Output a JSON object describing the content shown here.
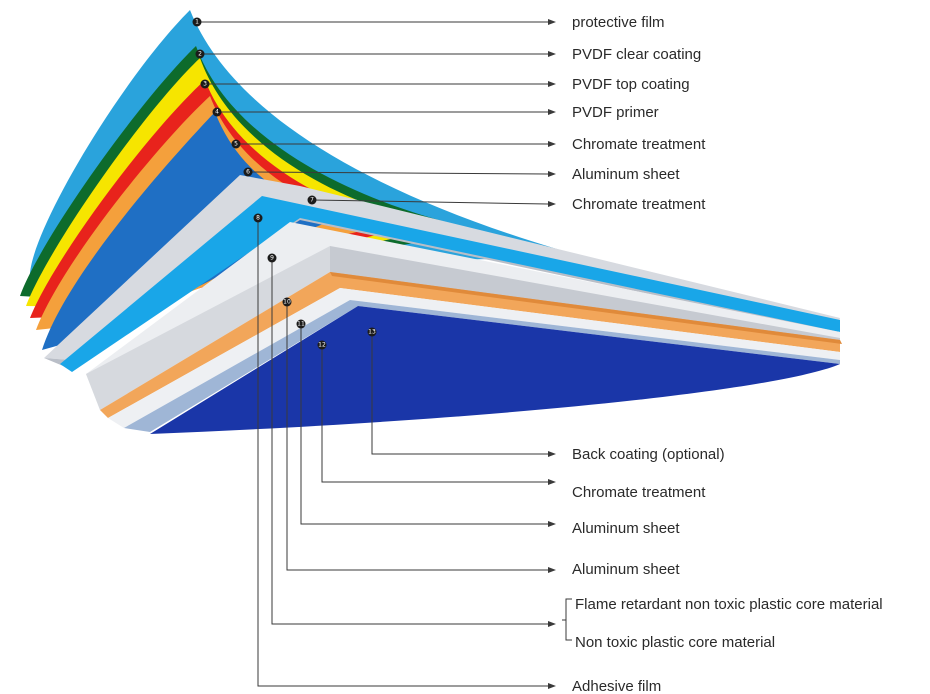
{
  "diagram": {
    "layers_top": [
      {
        "num": "1",
        "label": "protective film",
        "color": "#2aa3dc"
      },
      {
        "num": "2",
        "label": "PVDF clear coating",
        "color": "#0d6b2c"
      },
      {
        "num": "3",
        "label": "PVDF top coating",
        "color": "#f6e500"
      },
      {
        "num": "4",
        "label": "PVDF primer",
        "color": "#e8231c"
      },
      {
        "num": "5",
        "label": "Chromate treatment",
        "color": "#f4a03c"
      },
      {
        "num": "6",
        "label": "Aluminum sheet",
        "color": "#1f6fc4"
      },
      {
        "num": "7",
        "label": "Chromate treatment",
        "color": "#c9ccd2"
      }
    ],
    "layers_bottom": [
      {
        "num": "8",
        "label": "Adhesive film",
        "color": "#19a6e8"
      },
      {
        "num": "9",
        "label": "Non toxic plastic core material",
        "color": "#e4e6ea"
      },
      {
        "num": "10",
        "label": "Aluminum sheet",
        "color": "#f2a65a"
      },
      {
        "num": "11",
        "label": "Aluminum sheet",
        "color": "#e9ebee"
      },
      {
        "num": "12",
        "label": "Chromate treatment",
        "color": "#7fa8d8"
      },
      {
        "num": "13",
        "label": "Back coating (optional)",
        "color": "#1a36a8"
      }
    ],
    "core_alt_label": "Flame retardant non toxic plastic core material",
    "colors": {
      "protective_film": "#2aa3dc",
      "dark_green": "#0d6b2c",
      "yellow": "#f6e500",
      "red": "#e8231c",
      "orange": "#f4a03c",
      "blue": "#1f6fc4",
      "light_blue": "#19a6e8",
      "gray": "#d3d6dc",
      "back_blue": "#1a36a8",
      "leader": "#3a3a3a"
    }
  }
}
